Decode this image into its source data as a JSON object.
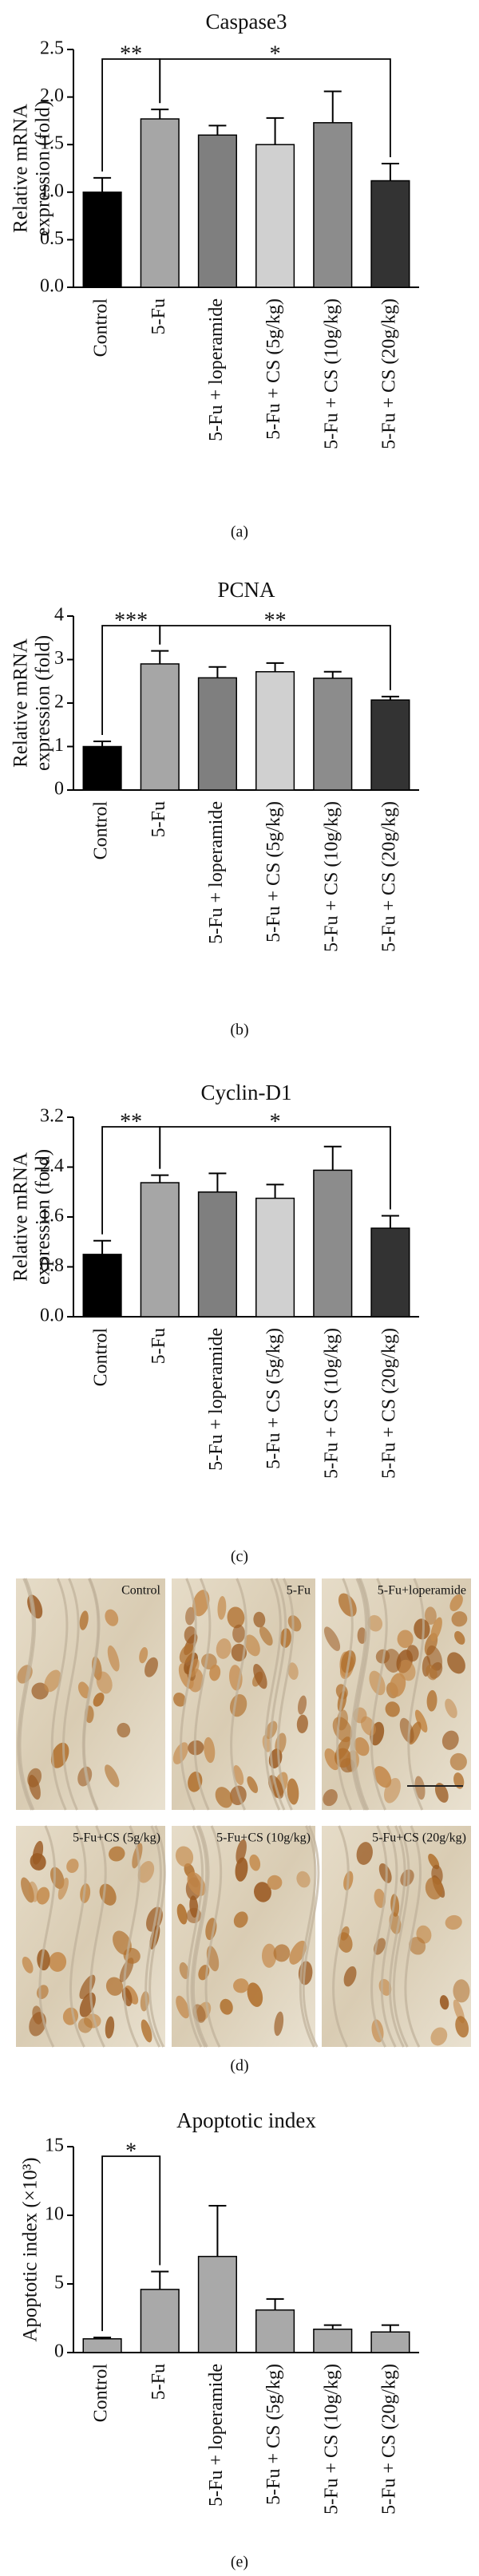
{
  "chart_data": [
    {
      "type": "bar",
      "title": "Caspase3",
      "ylabel": [
        "Relative mRNA",
        "expression (fold)"
      ],
      "categories": [
        "Control",
        "5-Fu",
        "5-Fu + loperamide",
        "5-Fu + CS (5g/kg)",
        "5-Fu + CS (10g/kg)",
        "5-Fu + CS (20g/kg)"
      ],
      "values": [
        1.0,
        1.77,
        1.6,
        1.5,
        1.73,
        1.12
      ],
      "errors": [
        0.15,
        0.1,
        0.1,
        0.28,
        0.33,
        0.18
      ],
      "colors": [
        "#000000",
        "#a6a6a6",
        "#7f7f7f",
        "#d0d0d0",
        "#8c8c8c",
        "#333333"
      ],
      "ylim": [
        0,
        2.5
      ],
      "yticks": [
        {
          "value": 0,
          "label": "0.0"
        },
        0.5,
        {
          "value": 1,
          "label": "1.0"
        },
        1.5,
        {
          "value": 2,
          "label": "2.0"
        },
        2.5
      ],
      "annotations": [
        {
          "text": "**",
          "from": 0,
          "to": 1
        },
        {
          "text": "*",
          "from": 1,
          "to": 5
        }
      ],
      "panel_label": "(a)"
    },
    {
      "type": "bar",
      "title": "PCNA",
      "ylabel": [
        "Relative mRNA",
        "expression (fold)"
      ],
      "categories": [
        "Control",
        "5-Fu",
        "5-Fu + loperamide",
        "5-Fu + CS (5g/kg)",
        "5-Fu + CS (10g/kg)",
        "5-Fu + CS (20g/kg)"
      ],
      "values": [
        1.0,
        2.9,
        2.58,
        2.72,
        2.57,
        2.07
      ],
      "errors": [
        0.12,
        0.3,
        0.25,
        0.2,
        0.15,
        0.08
      ],
      "colors": [
        "#000000",
        "#a6a6a6",
        "#7f7f7f",
        "#d0d0d0",
        "#8c8c8c",
        "#333333"
      ],
      "ylim": [
        0,
        4
      ],
      "yticks": [
        0,
        1,
        2,
        3,
        4
      ],
      "annotations": [
        {
          "text": "***",
          "from": 0,
          "to": 1
        },
        {
          "text": "**",
          "from": 1,
          "to": 5
        }
      ],
      "panel_label": "(b)"
    },
    {
      "type": "bar",
      "title": "Cyclin-D1",
      "ylabel": [
        "Relative mRNA",
        "expression (fold)"
      ],
      "categories": [
        "Control",
        "5-Fu",
        "5-Fu + loperamide",
        "5-Fu + CS (5g/kg)",
        "5-Fu + CS (10g/kg)",
        "5-Fu + CS (20g/kg)"
      ],
      "values": [
        1.0,
        2.15,
        2.0,
        1.9,
        2.35,
        1.42
      ],
      "errors": [
        0.22,
        0.12,
        0.3,
        0.22,
        0.38,
        0.2
      ],
      "colors": [
        "#000000",
        "#a6a6a6",
        "#7f7f7f",
        "#d0d0d0",
        "#8c8c8c",
        "#333333"
      ],
      "ylim": [
        0,
        3.2
      ],
      "yticks": [
        {
          "value": 0,
          "label": "0.0"
        },
        0.8,
        1.6,
        2.4,
        3.2
      ],
      "annotations": [
        {
          "text": "**",
          "from": 0,
          "to": 1
        },
        {
          "text": "*",
          "from": 1,
          "to": 5
        }
      ],
      "panel_label": "(c)"
    },
    {
      "type": "bar",
      "title": "Apoptotic index",
      "ylabel": [
        "Apoptotic index (×10³)"
      ],
      "categories": [
        "Control",
        "5-Fu",
        "5-Fu + loperamide",
        "5-Fu + CS (5g/kg)",
        "5-Fu + CS (10g/kg)",
        "5-Fu + CS (20g/kg)"
      ],
      "values": [
        1.0,
        4.6,
        7.0,
        3.1,
        1.7,
        1.5
      ],
      "errors": [
        0.1,
        1.3,
        3.7,
        0.8,
        0.3,
        0.5
      ],
      "colors": [
        "#a9a9a9",
        "#a9a9a9",
        "#a9a9a9",
        "#a9a9a9",
        "#a9a9a9",
        "#a9a9a9"
      ],
      "ylim": [
        0,
        15
      ],
      "yticks": [
        0,
        5,
        10,
        15
      ],
      "annotations": [
        {
          "text": "*",
          "from": 0,
          "to": 1
        }
      ],
      "panel_label": "(e)"
    }
  ],
  "micrographs": {
    "labels": [
      "Control",
      "5-Fu",
      "5-Fu+loperamide",
      "5-Fu+CS (5g/kg)",
      "5-Fu+CS (10g/kg)",
      "5-Fu+CS (20g/kg)"
    ],
    "panel_label": "(d)"
  }
}
